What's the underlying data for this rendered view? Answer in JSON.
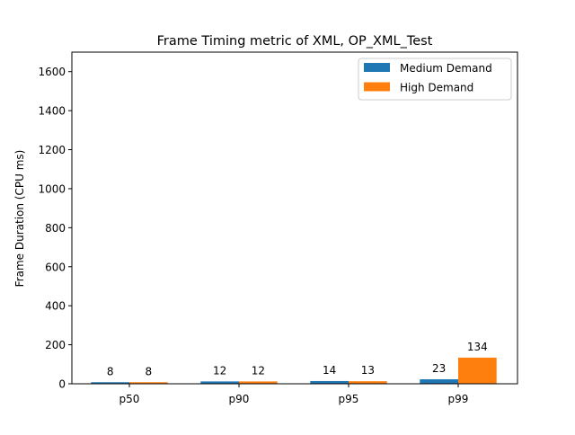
{
  "chart_data": {
    "type": "bar",
    "title": "Frame Timing metric of XML, OP_XML_Test",
    "xlabel": "",
    "ylabel": "Frame Duration (CPU ms)",
    "categories": [
      "p50",
      "p90",
      "p95",
      "p99"
    ],
    "ylim": [
      0,
      1700
    ],
    "yticks": [
      0,
      200,
      400,
      600,
      800,
      1000,
      1200,
      1400,
      1600
    ],
    "series": [
      {
        "name": "Medium Demand",
        "values": [
          8,
          12,
          14,
          23
        ],
        "color": "#1f77b4"
      },
      {
        "name": "High Demand",
        "values": [
          8,
          12,
          13,
          134
        ],
        "color": "#ff7f0e"
      }
    ],
    "legend": "top-right",
    "grid": false
  }
}
